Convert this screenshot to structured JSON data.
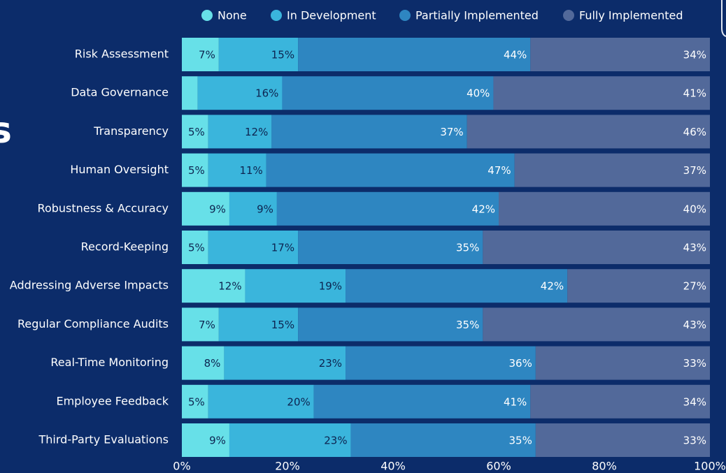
{
  "title_fragment": "s",
  "chart_data": {
    "type": "stacked_barh",
    "categories": [
      "Risk Assessment",
      "Data Governance",
      "Transparency",
      "Human Oversight",
      "Robustness & Accuracy",
      "Record-Keeping",
      "Addressing Adverse Impacts",
      "Regular Compliance Audits",
      "Real-Time Monitoring",
      "Employee Feedback",
      "Third-Party Evaluations"
    ],
    "series": [
      {
        "name": "None",
        "color": "#67e0e8",
        "label_color": "#0d2450",
        "values": [
          7,
          3,
          5,
          5,
          9,
          5,
          12,
          7,
          8,
          5,
          9
        ],
        "value_labels": [
          "7%",
          null,
          "5%",
          "5%",
          "9%",
          "5%",
          "12%",
          "7%",
          "8%",
          "5%",
          "9%"
        ]
      },
      {
        "name": "In Development",
        "color": "#3ab5dc",
        "label_color": "#0d2450",
        "values": [
          15,
          16,
          12,
          11,
          9,
          17,
          19,
          15,
          23,
          20,
          23
        ],
        "value_labels": [
          "15%",
          "16%",
          "12%",
          "11%",
          "9%",
          "17%",
          "19%",
          "15%",
          "23%",
          "20%",
          "23%"
        ]
      },
      {
        "name": "Partially Implemented",
        "color": "#2e86c1",
        "label_color": "#ffffff",
        "values": [
          44,
          40,
          37,
          47,
          42,
          35,
          42,
          35,
          36,
          41,
          35
        ],
        "value_labels": [
          "44%",
          "40%",
          "37%",
          "47%",
          "42%",
          "35%",
          "42%",
          "35%",
          "36%",
          "41%",
          "35%"
        ]
      },
      {
        "name": "Fully Implemented",
        "color": "#52699a",
        "label_color": "#ffffff",
        "values": [
          34,
          41,
          46,
          37,
          40,
          43,
          27,
          43,
          33,
          34,
          33
        ],
        "value_labels": [
          "34%",
          "41%",
          "46%",
          "37%",
          "40%",
          "43%",
          "27%",
          "43%",
          "33%",
          "34%",
          "33%"
        ]
      }
    ],
    "xlim": [
      0,
      100
    ],
    "xticks": [
      {
        "value": 0,
        "label": "0%"
      },
      {
        "value": 20,
        "label": "20%"
      },
      {
        "value": 40,
        "label": "40%"
      },
      {
        "value": 60,
        "label": "60%"
      },
      {
        "value": 80,
        "label": "80%"
      },
      {
        "value": 100,
        "label": "100%"
      }
    ],
    "legend": "top"
  }
}
